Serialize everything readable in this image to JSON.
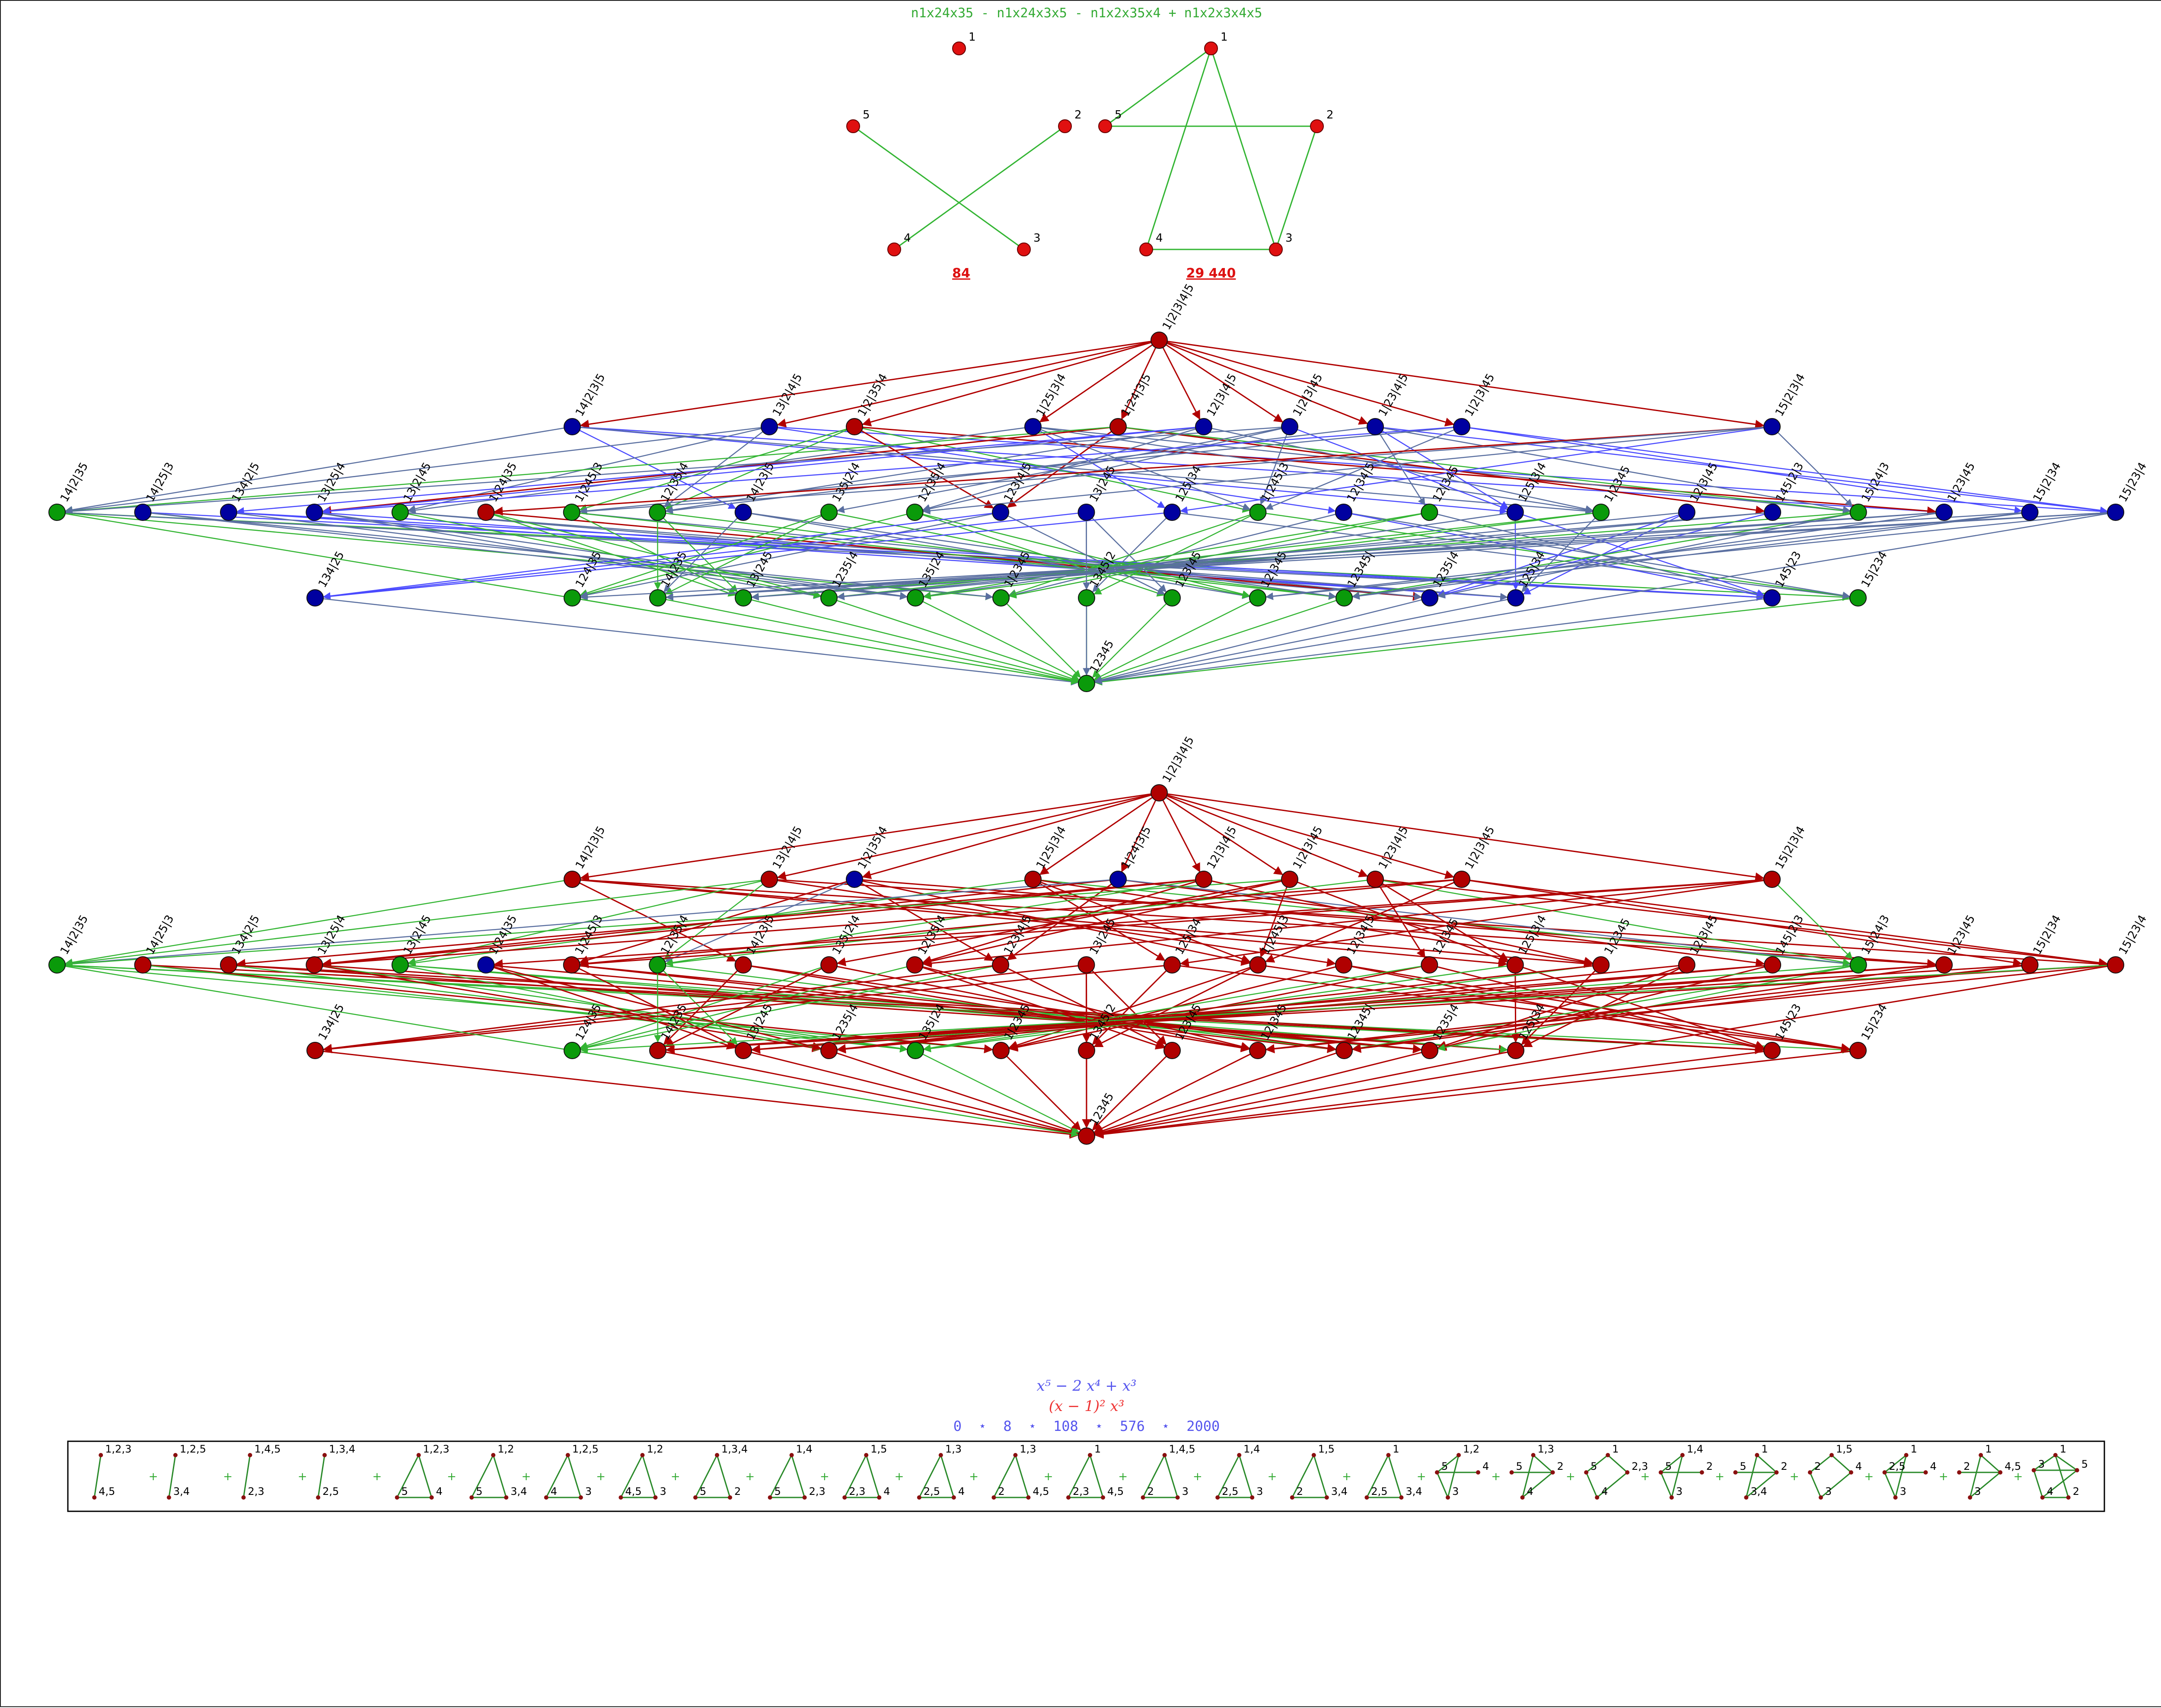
{
  "header": {
    "formula": "n1x24x35 - n1x24x3x5 - n1x2x35x4 + n1x2x3x4x5"
  },
  "small_graphs": {
    "left": {
      "labels": [
        "1",
        "2",
        "3",
        "4",
        "5"
      ],
      "edges": [
        [
          "5",
          "3"
        ],
        [
          "2",
          "4"
        ]
      ],
      "value": "84"
    },
    "right": {
      "labels": [
        "1",
        "2",
        "3",
        "4",
        "5"
      ],
      "edges": [
        [
          "1",
          "5"
        ],
        [
          "1",
          "4"
        ],
        [
          "1",
          "3"
        ],
        [
          "5",
          "2"
        ],
        [
          "2",
          "3"
        ],
        [
          "4",
          "3"
        ]
      ],
      "value": "29 440"
    }
  },
  "colors": {
    "red_node": "#b00000",
    "blue_node": "#0000a0",
    "green_node": "#0a9a0a",
    "red_edge": "#b00000",
    "blue_edge": "#4a4aff",
    "green_edge": "#33b533",
    "slate_edge": "#5a6fa0",
    "formula_green": "#33aa33",
    "value_red": "#dd1111",
    "poly_blue": "#5555ee",
    "poly_red": "#ee3333"
  },
  "lattice": {
    "top": "1|2|3|4|5",
    "rank1": [
      "14|2|3|5",
      "13|2|4|5",
      "1|2|35|4",
      "1|25|3|4",
      "1|24|3|5",
      "12|3|4|5",
      "1|2|3|45",
      "1|23|4|5",
      "1|2|3|45",
      "15|2|3|4"
    ],
    "rank2": [
      "14|2|35",
      "14|25|3",
      "134|2|5",
      "13|25|4",
      "13|2|45",
      "1|24|35",
      "1|245|3",
      "12|35|4",
      "14|23|5",
      "135|2|4",
      "12|35|4",
      "123|4|5",
      "13|245",
      "125|34",
      "1|245|3",
      "12|34|5",
      "12|345",
      "125|3|4",
      "1|2345",
      "12|3|45",
      "145|2|3",
      "15|24|3",
      "1|23|45",
      "15|2|34",
      "15|23|4"
    ],
    "rank3": [
      "134|25",
      "124|35",
      "14|235",
      "13|245",
      "1235|4",
      "135|24",
      "1|2345",
      "1345|2",
      "123|45",
      "12|345",
      "12345|",
      "1235|4",
      "125|34",
      "145|23",
      "15|234"
    ],
    "bottom": "12345"
  },
  "lattice_top_colors": {
    "top": "red",
    "rank1": [
      "blue",
      "blue",
      "red",
      "blue",
      "red",
      "blue",
      "blue",
      "blue",
      "blue",
      "blue"
    ],
    "rank2": [
      "green",
      "blue",
      "blue",
      "blue",
      "green",
      "red",
      "green",
      "green",
      "blue",
      "green",
      "green",
      "blue",
      "blue",
      "blue",
      "green",
      "blue",
      "green",
      "blue",
      "green",
      "blue",
      "blue",
      "green",
      "blue",
      "blue",
      "blue"
    ],
    "rank3": [
      "blue",
      "green",
      "green",
      "green",
      "green",
      "green",
      "green",
      "green",
      "green",
      "green",
      "green",
      "blue",
      "blue",
      "blue",
      "green"
    ],
    "bottom": "green"
  },
  "lattice_bottom_colors": {
    "top": "red",
    "rank1": [
      "red",
      "red",
      "blue",
      "red",
      "blue",
      "red",
      "red",
      "red",
      "red",
      "red"
    ],
    "rank2": [
      "green",
      "red",
      "red",
      "red",
      "green",
      "blue",
      "red",
      "green",
      "red",
      "red",
      "red",
      "red",
      "red",
      "red",
      "red",
      "red",
      "red",
      "red",
      "red",
      "red",
      "red",
      "green",
      "red",
      "red",
      "red"
    ],
    "rank3": [
      "red",
      "green",
      "red",
      "red",
      "red",
      "green",
      "red",
      "red",
      "red",
      "red",
      "red",
      "red",
      "red",
      "red",
      "red"
    ],
    "bottom": "red"
  },
  "polynomial": {
    "line1_blue": "x⁵ − 2 x⁴ + x³",
    "line2_red": "(x − 1)² x³",
    "line3_blue": "0  ⋆  8  ⋆  108  ⋆  576  ⋆  2000"
  },
  "graph_strip": {
    "terms": [
      {
        "labels": [
          "1,2,3",
          "4,5"
        ]
      },
      {
        "labels": [
          "1,2,5",
          "3,4"
        ]
      },
      {
        "labels": [
          "1,4,5",
          "2,3"
        ]
      },
      {
        "labels": [
          "1,3,4",
          "2,5"
        ]
      },
      {
        "labels": [
          "1,2,3",
          "5",
          "4"
        ]
      },
      {
        "labels": [
          "1,2",
          "5",
          "3,4"
        ]
      },
      {
        "labels": [
          "1,2,5",
          "4",
          "3"
        ]
      },
      {
        "labels": [
          "1,2",
          "4,5",
          "3"
        ]
      },
      {
        "labels": [
          "1,3,4",
          "5",
          "2"
        ]
      },
      {
        "labels": [
          "1,4",
          "5",
          "2,3"
        ]
      },
      {
        "labels": [
          "1,5",
          "2,3",
          "4"
        ]
      },
      {
        "labels": [
          "1,3",
          "2,5",
          "4"
        ]
      },
      {
        "labels": [
          "1,3",
          "2",
          "4,5"
        ]
      },
      {
        "labels": [
          "1",
          "2,3",
          "4,5"
        ]
      },
      {
        "labels": [
          "1,4,5",
          "2",
          "3"
        ]
      },
      {
        "labels": [
          "1,4",
          "2,5",
          "3"
        ]
      },
      {
        "labels": [
          "1,5",
          "2",
          "3,4"
        ]
      },
      {
        "labels": [
          "1",
          "2,5",
          "3,4"
        ]
      },
      {
        "labels": [
          "1,2",
          "5",
          "4",
          "3"
        ]
      },
      {
        "labels": [
          "1,3",
          "5",
          "2",
          "4"
        ]
      },
      {
        "labels": [
          "1",
          "5",
          "2,3",
          "4"
        ]
      },
      {
        "labels": [
          "1,4",
          "5",
          "2",
          "3"
        ]
      },
      {
        "labels": [
          "1",
          "5",
          "2",
          "3,4"
        ]
      },
      {
        "labels": [
          "1,5",
          "2",
          "4",
          "3"
        ]
      },
      {
        "labels": [
          "1",
          "2,5",
          "4",
          "3"
        ]
      },
      {
        "labels": [
          "1",
          "2",
          "4,5",
          "3"
        ]
      },
      {
        "labels": [
          "1",
          "5",
          "2",
          "4",
          "3"
        ]
      }
    ]
  }
}
